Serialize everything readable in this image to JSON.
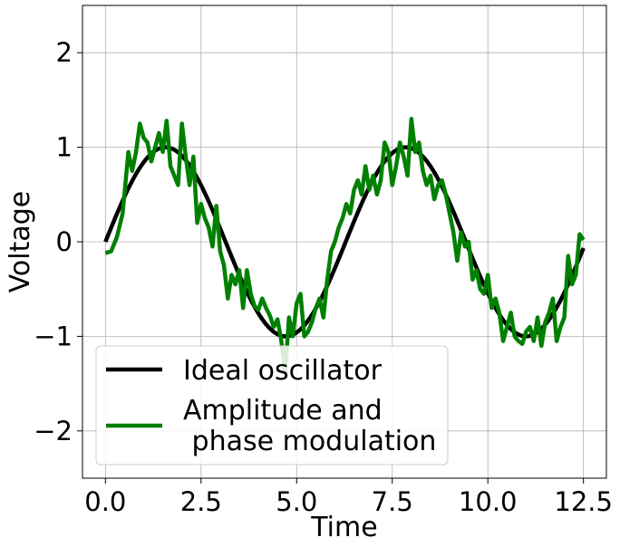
{
  "chart_data": {
    "type": "line",
    "title": "",
    "xlabel": "Time",
    "ylabel": "Voltage",
    "xlim": [
      -0.6,
      13.1
    ],
    "ylim": [
      -2.5,
      2.5
    ],
    "grid": true,
    "legend_position": "lower-left",
    "x_ticks": [
      0.0,
      2.5,
      5.0,
      7.5,
      10.0,
      12.5
    ],
    "x_tick_labels": [
      "0.0",
      "2.5",
      "5.0",
      "7.5",
      "10.0",
      "12.5"
    ],
    "y_ticks": [
      2,
      1,
      0,
      -1,
      -2
    ],
    "y_tick_labels": [
      "2",
      "1",
      "0",
      "−1",
      "−2"
    ],
    "series": [
      {
        "name": "Ideal oscillator",
        "color": "#000000",
        "function": "sin",
        "x_range": [
          0,
          12.5
        ]
      },
      {
        "name": "Amplitude and\n phase modulation",
        "color": "#008000",
        "x": [
          0.0,
          0.15,
          0.3,
          0.45,
          0.6,
          0.7,
          0.8,
          0.9,
          1.0,
          1.1,
          1.2,
          1.3,
          1.4,
          1.5,
          1.6,
          1.7,
          1.8,
          1.9,
          2.0,
          2.1,
          2.2,
          2.3,
          2.4,
          2.5,
          2.6,
          2.7,
          2.8,
          2.9,
          3.0,
          3.1,
          3.2,
          3.3,
          3.4,
          3.5,
          3.6,
          3.7,
          3.8,
          3.9,
          4.0,
          4.1,
          4.2,
          4.3,
          4.4,
          4.5,
          4.6,
          4.7,
          4.8,
          4.9,
          5.0,
          5.1,
          5.2,
          5.3,
          5.4,
          5.5,
          5.6,
          5.7,
          5.8,
          5.9,
          6.0,
          6.1,
          6.2,
          6.3,
          6.4,
          6.5,
          6.6,
          6.7,
          6.8,
          6.9,
          7.0,
          7.1,
          7.2,
          7.3,
          7.4,
          7.5,
          7.6,
          7.7,
          7.8,
          7.9,
          8.0,
          8.1,
          8.2,
          8.3,
          8.4,
          8.5,
          8.6,
          8.7,
          8.8,
          8.9,
          9.0,
          9.1,
          9.2,
          9.3,
          9.4,
          9.5,
          9.6,
          9.7,
          9.8,
          9.9,
          10.0,
          10.1,
          10.2,
          10.3,
          10.4,
          10.5,
          10.6,
          10.7,
          10.8,
          10.9,
          11.0,
          11.1,
          11.2,
          11.3,
          11.4,
          11.5,
          11.6,
          11.7,
          11.8,
          11.9,
          12.0,
          12.1,
          12.2,
          12.3,
          12.4,
          12.5
        ],
        "values": [
          -0.12,
          -0.1,
          0.05,
          0.3,
          0.95,
          0.75,
          0.95,
          1.25,
          1.1,
          1.05,
          0.85,
          1.0,
          1.15,
          0.95,
          1.28,
          0.8,
          0.7,
          0.6,
          1.25,
          0.9,
          0.6,
          0.9,
          0.2,
          0.4,
          0.25,
          0.15,
          -0.05,
          0.38,
          -0.1,
          -0.25,
          -0.6,
          -0.35,
          -0.45,
          -0.3,
          -0.7,
          -0.3,
          -0.55,
          -0.68,
          -0.72,
          -0.6,
          -0.7,
          -0.78,
          -0.9,
          -0.82,
          -1.05,
          -1.38,
          -0.8,
          -1.0,
          -0.65,
          -0.55,
          -1.0,
          -0.95,
          -0.85,
          -0.7,
          -0.6,
          -0.8,
          -0.4,
          -0.1,
          0.0,
          0.15,
          0.25,
          0.4,
          0.3,
          0.55,
          0.65,
          0.5,
          0.8,
          0.55,
          0.7,
          0.5,
          0.65,
          1.05,
          0.95,
          0.6,
          0.8,
          1.05,
          0.9,
          0.7,
          1.3,
          0.95,
          1.05,
          0.75,
          0.6,
          0.7,
          0.45,
          0.6,
          0.65,
          0.5,
          0.3,
          0.1,
          -0.2,
          0.1,
          -0.05,
          0.0,
          -0.4,
          -0.3,
          -0.5,
          -0.55,
          -0.35,
          -0.7,
          -0.6,
          -0.75,
          -1.05,
          -0.9,
          -0.75,
          -1.0,
          -1.05,
          -1.08,
          -0.95,
          -0.9,
          -1.05,
          -0.8,
          -1.1,
          -0.85,
          -0.75,
          -0.6,
          -1.05,
          -0.9,
          -0.8,
          -0.15,
          -0.45,
          -0.35,
          0.08,
          0.02
        ]
      }
    ]
  }
}
